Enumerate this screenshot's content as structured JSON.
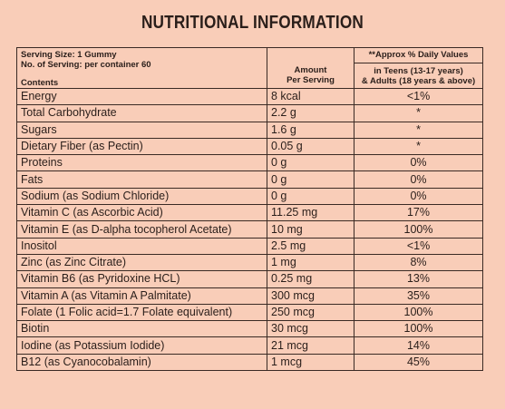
{
  "title": "NUTRITIONAL INFORMATION",
  "header": {
    "serving_size": "Serving Size: 1 Gummy",
    "servings": "No. of Serving: per container 60",
    "contents": "Contents",
    "amount_line1": "Amount",
    "amount_line2": "Per Serving",
    "dv_title": "**Approx % Daily Values",
    "dv_line1": "in Teens (13-17 years)",
    "dv_line2": "& Adults (18 years & above)"
  },
  "rows": [
    {
      "name": "Energy",
      "amount": "8 kcal",
      "dv": "<1%"
    },
    {
      "name": "Total Carbohydrate",
      "amount": "2.2 g",
      "dv": "*"
    },
    {
      "name": "Sugars",
      "amount": "1.6 g",
      "dv": "*"
    },
    {
      "name": "Dietary Fiber (as Pectin)",
      "amount": "0.05 g",
      "dv": "*"
    },
    {
      "name": "Proteins",
      "amount": "0 g",
      "dv": "0%"
    },
    {
      "name": "Fats",
      "amount": "0 g",
      "dv": "0%"
    },
    {
      "name": "Sodium (as Sodium Chloride)",
      "amount": "0 g",
      "dv": "0%"
    },
    {
      "name": "Vitamin C (as Ascorbic Acid)",
      "amount": "11.25 mg",
      "dv": "17%"
    },
    {
      "name": "Vitamin E (as D-alpha tocopherol Acetate)",
      "amount": "10 mg",
      "dv": "100%"
    },
    {
      "name": "Inositol",
      "amount": "2.5 mg",
      "dv": "<1%"
    },
    {
      "name": "Zinc (as Zinc Citrate)",
      "amount": "1 mg",
      "dv": "8%"
    },
    {
      "name": "Vitamin B6 (as Pyridoxine HCL)",
      "amount": "0.25 mg",
      "dv": "13%"
    },
    {
      "name": "Vitamin A (as Vitamin A Palmitate)",
      "amount": "300 mcg",
      "dv": "35%"
    },
    {
      "name": "Folate (1 Folic acid=1.7 Folate equivalent)",
      "amount": "250 mcg",
      "dv": "100%"
    },
    {
      "name": "Biotin",
      "amount": "30 mcg",
      "dv": "100%"
    },
    {
      "name": "Iodine (as Potassium Iodide)",
      "amount": "21 mcg",
      "dv": "14%"
    },
    {
      "name": "B12 (as Cyanocobalamin)",
      "amount": "1 mcg",
      "dv": "45%"
    }
  ],
  "colors": {
    "background": "#f9cdb8",
    "ink": "#2a1e1a"
  }
}
